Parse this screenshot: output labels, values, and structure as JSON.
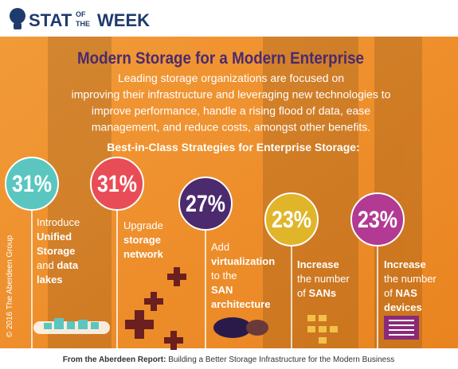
{
  "header": {
    "logo": [
      "STAT",
      "OF",
      "THE",
      "WEEK"
    ]
  },
  "title": "Modern Storage for a Modern Enterprise",
  "intro": [
    "Leading storage organizations are focused on",
    "improving their infrastructure and leveraging new technologies to",
    "improve performance, handle a rising flood of data, ease",
    "management, and reduce costs, amongst other benefits."
  ],
  "subtitle": "Best-in-Class Strategies for Enterprise Storage:",
  "copyright": "© 2016 The Aberdeen Group",
  "items": [
    {
      "value": "31%",
      "color": "#5bc6c0",
      "lines": [
        [
          {
            "text": "Introduce",
            "bold": false
          }
        ],
        [
          {
            "text": "Unified",
            "bold": true
          }
        ],
        [
          {
            "text": "Storage",
            "bold": true
          }
        ],
        [
          {
            "text": "and ",
            "bold": false
          },
          {
            "text": "data",
            "bold": true
          }
        ],
        [
          {
            "text": "lakes",
            "bold": true
          }
        ]
      ]
    },
    {
      "value": "31%",
      "color": "#e84d57",
      "lines": [
        [
          {
            "text": "Upgrade",
            "bold": false
          }
        ],
        [
          {
            "text": "storage",
            "bold": true
          }
        ],
        [
          {
            "text": "network",
            "bold": true
          }
        ]
      ]
    },
    {
      "value": "27%",
      "color": "#4b2a6e",
      "lines": [
        [
          {
            "text": "Add",
            "bold": false
          }
        ],
        [
          {
            "text": "virtualization",
            "bold": true
          }
        ],
        [
          {
            "text": "to the",
            "bold": false
          }
        ],
        [
          {
            "text": "SAN",
            "bold": true
          }
        ],
        [
          {
            "text": "architecture",
            "bold": true
          }
        ]
      ]
    },
    {
      "value": "23%",
      "color": "#e0b52a",
      "lines": [
        [
          {
            "text": "Increase",
            "bold": true
          }
        ],
        [
          {
            "text": "the number",
            "bold": false
          }
        ],
        [
          {
            "text": "of ",
            "bold": false
          },
          {
            "text": "SANs",
            "bold": true
          }
        ]
      ]
    },
    {
      "value": "23%",
      "color": "#b23a93",
      "lines": [
        [
          {
            "text": "Increase",
            "bold": true
          }
        ],
        [
          {
            "text": "the number",
            "bold": false
          }
        ],
        [
          {
            "text": "of ",
            "bold": false
          },
          {
            "text": "NAS",
            "bold": true
          }
        ],
        [
          {
            "text": "devices",
            "bold": true
          }
        ]
      ]
    }
  ],
  "footer": {
    "source": "From the Aberdeen Report:",
    "report": "Building a Better Storage Infrastructure for the Modern Business"
  }
}
